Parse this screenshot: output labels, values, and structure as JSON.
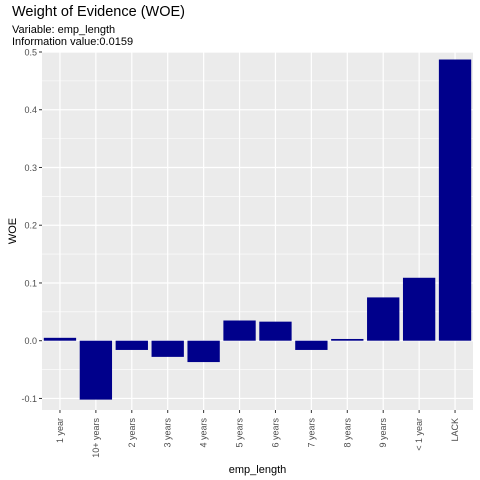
{
  "title": "Weight of Evidence (WOE)",
  "subtitle_lines": [
    "Variable: emp_length",
    "Information value:0.0159"
  ],
  "chart_data": {
    "type": "bar",
    "title": "Weight of Evidence (WOE)",
    "subtitle": [
      "Variable: emp_length",
      "Information value:0.0159"
    ],
    "xlabel": "emp_length",
    "ylabel": "WOE",
    "categories": [
      "1 year",
      "10+ years",
      "2 years",
      "3 years",
      "4 years",
      "5 years",
      "6 years",
      "7 years",
      "8 years",
      "9 years",
      "< 1 year",
      "LACK"
    ],
    "values": [
      0.005,
      -0.102,
      -0.016,
      -0.028,
      -0.037,
      0.035,
      0.033,
      -0.016,
      0.003,
      0.075,
      0.109,
      0.487
    ],
    "ylim": [
      -0.12,
      0.5
    ],
    "yticks": [
      -0.1,
      0.0,
      0.1,
      0.2,
      0.3,
      0.4,
      0.5
    ],
    "ytick_labels": [
      "-0.1",
      "0.0",
      "0.1",
      "0.2",
      "0.3",
      "0.4",
      "0.5"
    ],
    "grid": true,
    "bar_color": "#00008B",
    "panel_color": "#EBEBEB",
    "grid_color": "#FFFFFF"
  }
}
